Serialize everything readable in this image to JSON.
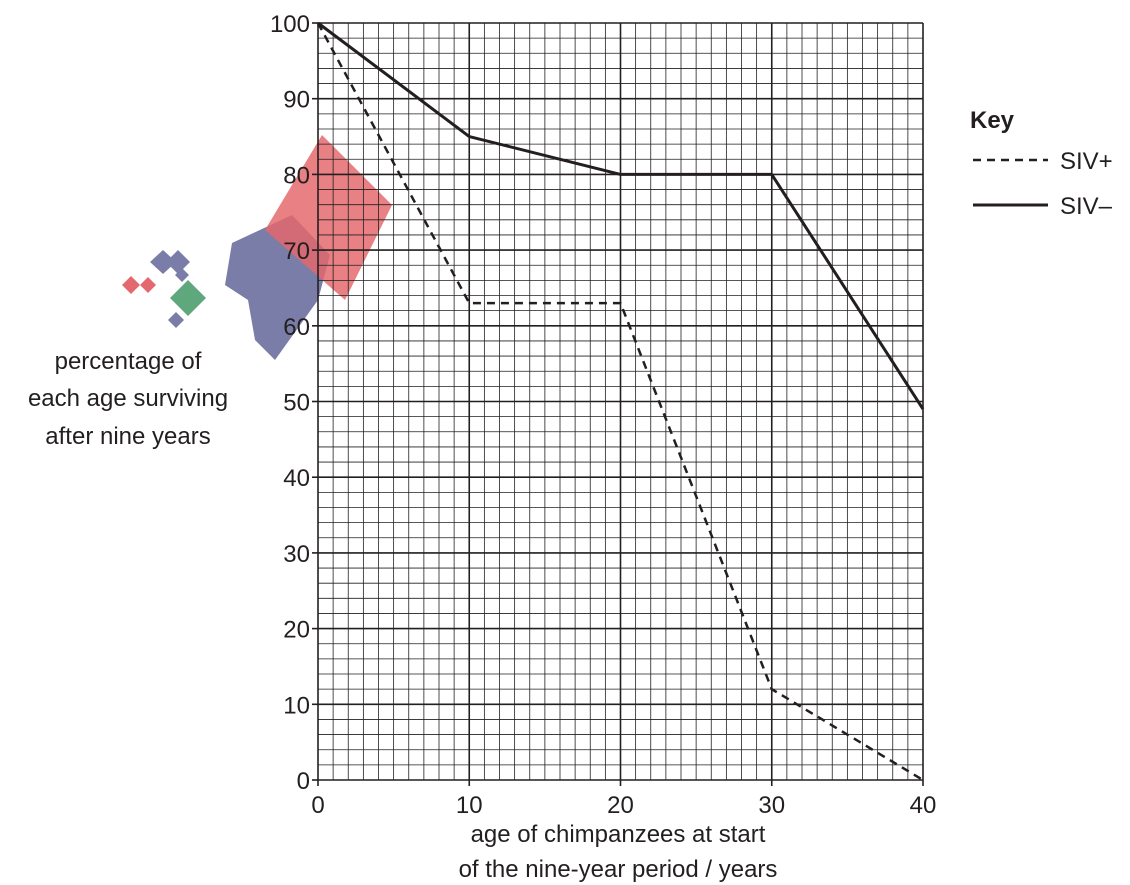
{
  "chart_data": {
    "type": "line",
    "xlabel": [
      "age of chimpanzees at start",
      "of the nine-year period / years"
    ],
    "ylabel": [
      "percentage of",
      "each age surviving",
      "after nine years"
    ],
    "xlim": [
      0,
      40
    ],
    "ylim": [
      0,
      100
    ],
    "x_ticks": [
      "0",
      "10",
      "20",
      "30",
      "40"
    ],
    "y_ticks": [
      "0",
      "10",
      "20",
      "30",
      "40",
      "50",
      "60",
      "70",
      "80",
      "90",
      "100"
    ],
    "grid": true,
    "legend_title": "Key",
    "legend_position": "top-right",
    "series": [
      {
        "name": "SIV+",
        "style": "dashed",
        "color": "#231f20",
        "points": [
          [
            0,
            100
          ],
          [
            10,
            63
          ],
          [
            20,
            63
          ],
          [
            30,
            12
          ],
          [
            40,
            0
          ]
        ]
      },
      {
        "name": "SIV–",
        "style": "solid",
        "color": "#231f20",
        "points": [
          [
            0,
            100
          ],
          [
            10,
            85
          ],
          [
            20,
            80
          ],
          [
            30,
            80
          ],
          [
            40,
            49
          ]
        ]
      }
    ]
  }
}
